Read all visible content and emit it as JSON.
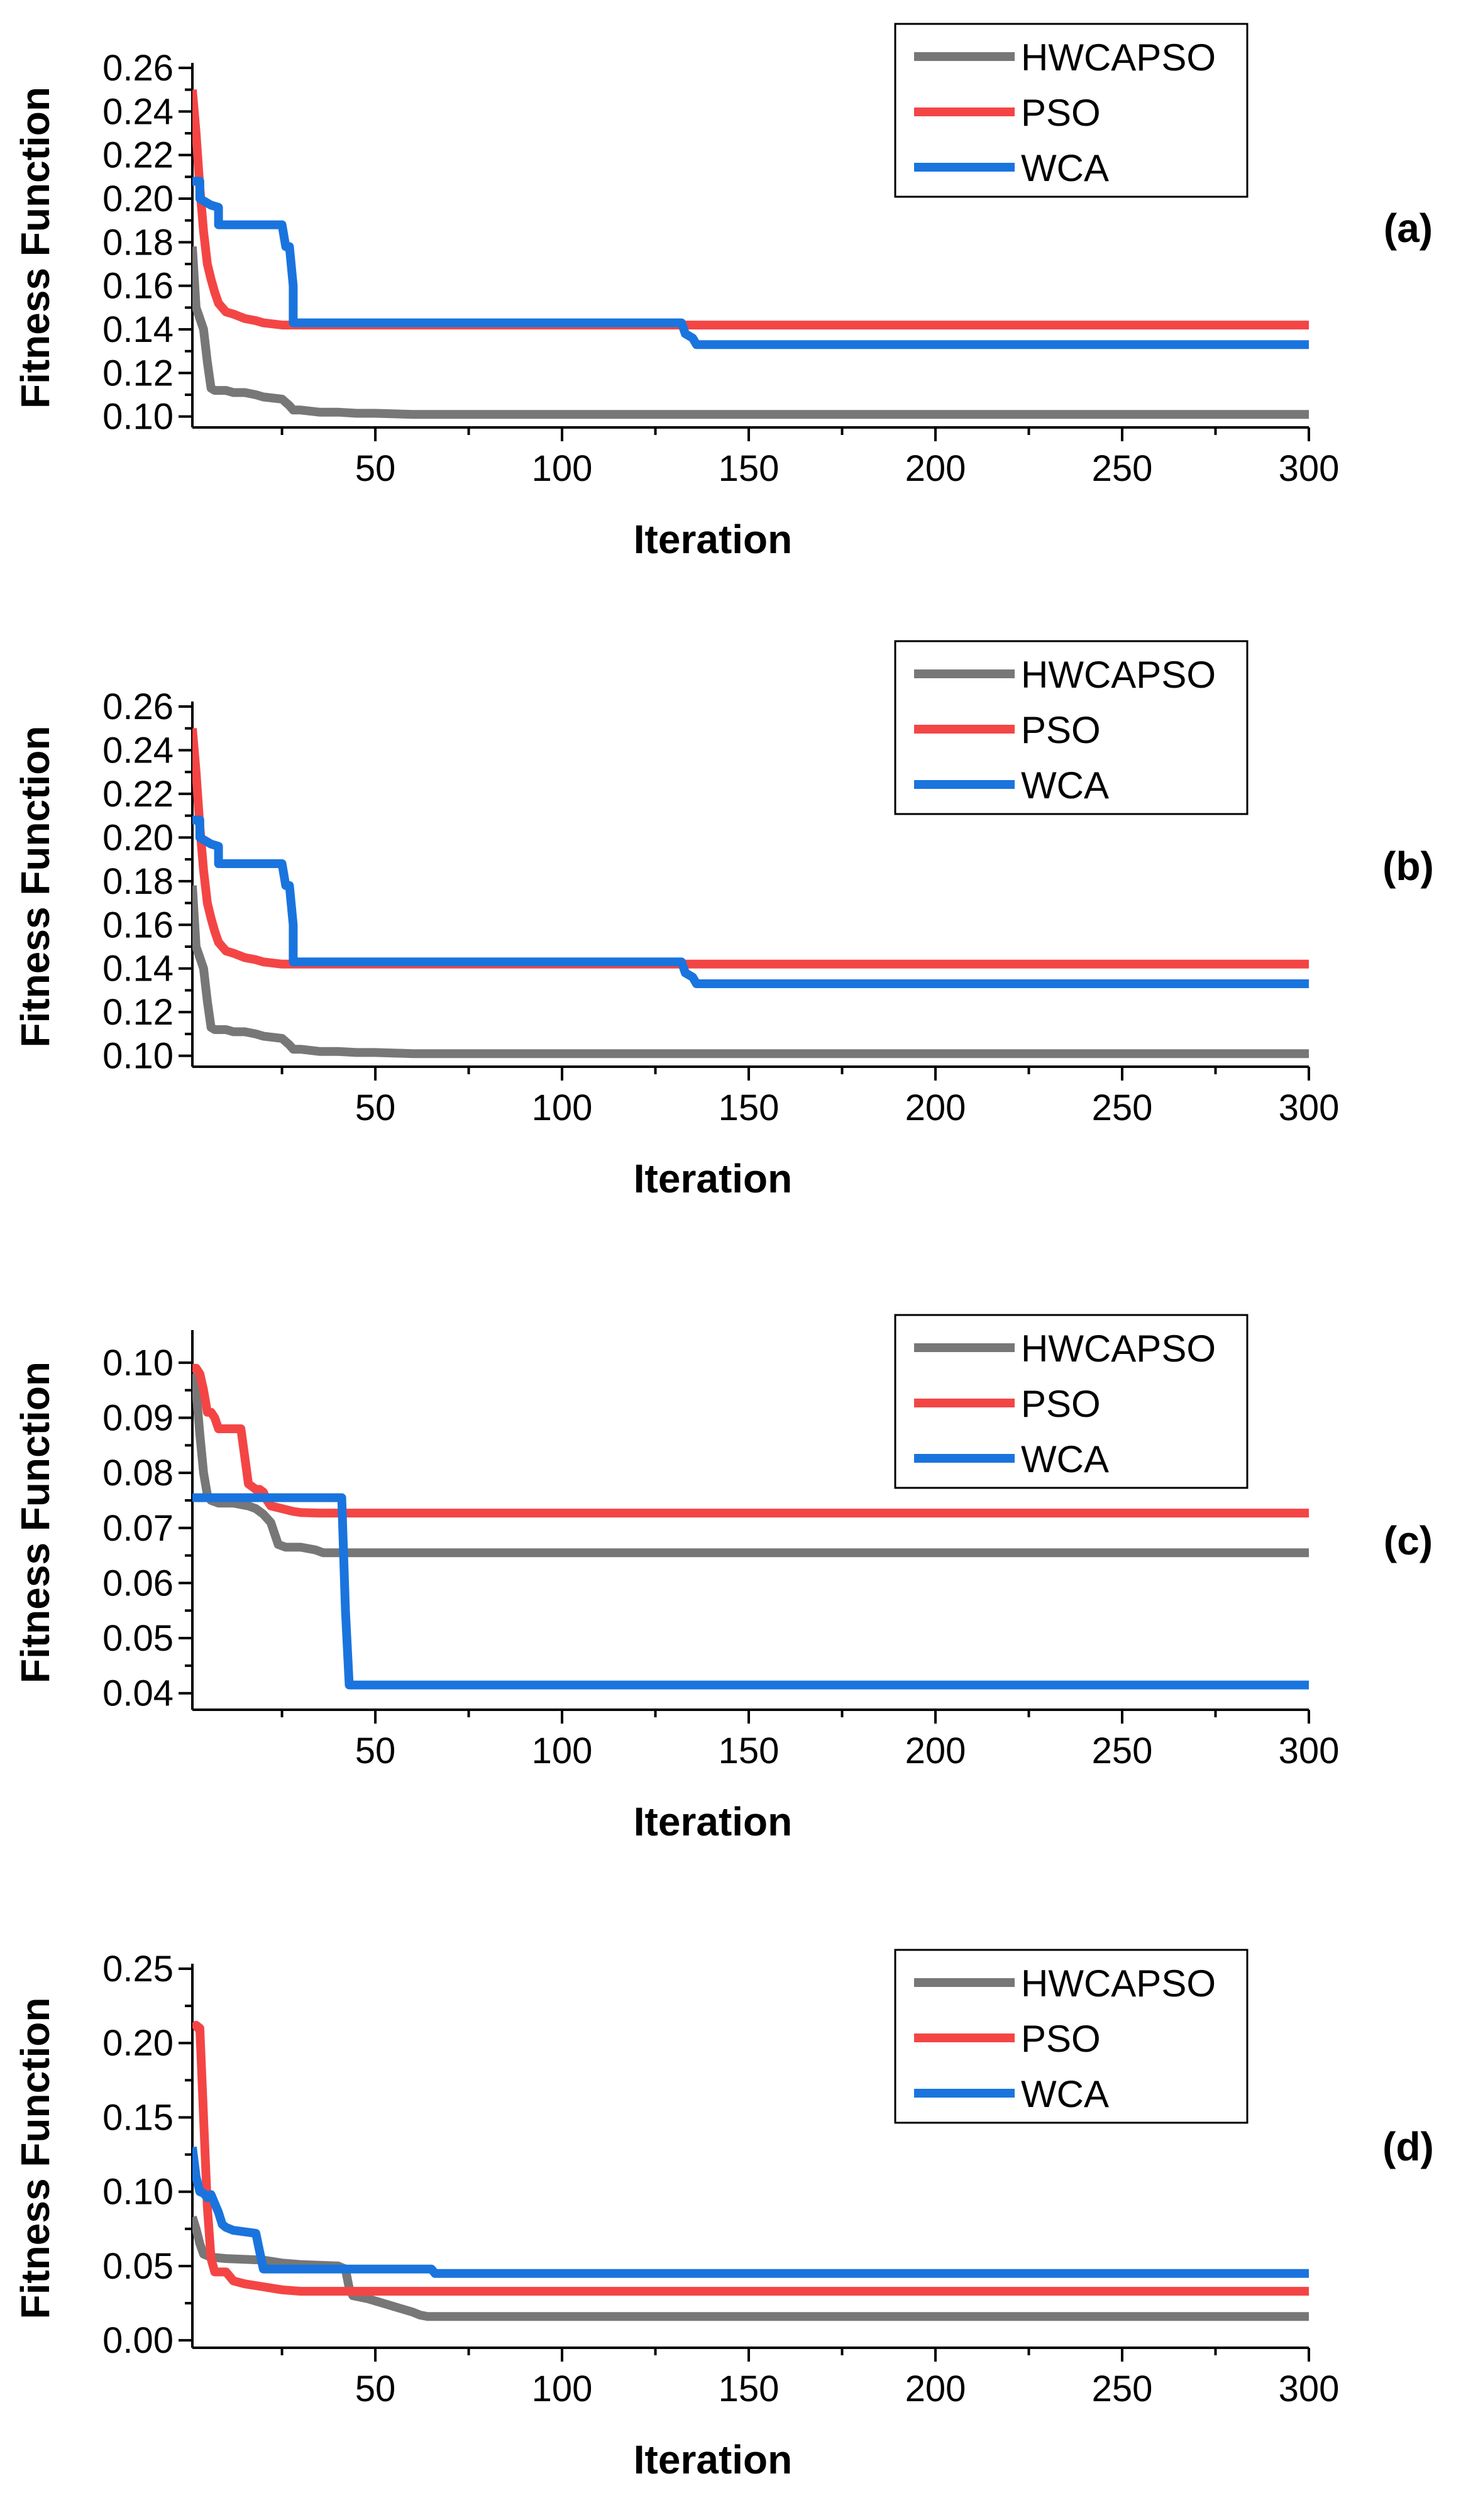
{
  "colors": {
    "HWCAPSO": "#777777",
    "PSO": "#f44545",
    "WCA": "#1a74de",
    "axis": "#000000"
  },
  "chart_data": [
    {
      "type": "line",
      "panel_label": "(a)",
      "xlabel": "Iteration",
      "ylabel": "Fitness Function",
      "xlim": [
        1,
        300
      ],
      "ylim": [
        0.095,
        0.26
      ],
      "xticks": [
        50,
        100,
        150,
        200,
        250,
        300
      ],
      "xtick_labels": [
        "50",
        "100",
        "150",
        "200",
        "250",
        "300"
      ],
      "yticks": [
        0.1,
        0.12,
        0.14,
        0.16,
        0.18,
        0.2,
        0.22,
        0.24,
        0.26
      ],
      "ytick_labels": [
        "0.10",
        "0.12",
        "0.14",
        "0.16",
        "0.18",
        "0.20",
        "0.22",
        "0.24",
        "0.26"
      ],
      "legend_position": "top-right",
      "series": [
        {
          "name": "HWCAPSO",
          "x": [
            1,
            2,
            3,
            4,
            5,
            6,
            7,
            8,
            10,
            12,
            15,
            18,
            20,
            25,
            27,
            28,
            30,
            35,
            40,
            45,
            50,
            60,
            100,
            200,
            300
          ],
          "y": [
            0.178,
            0.15,
            0.145,
            0.14,
            0.125,
            0.113,
            0.112,
            0.112,
            0.112,
            0.111,
            0.111,
            0.11,
            0.109,
            0.108,
            0.105,
            0.103,
            0.103,
            0.102,
            0.102,
            0.1015,
            0.1015,
            0.101,
            0.101,
            0.101,
            0.101
          ]
        },
        {
          "name": "PSO",
          "x": [
            1,
            2,
            3,
            4,
            5,
            6,
            7,
            8,
            10,
            12,
            15,
            18,
            20,
            25,
            30,
            50,
            100,
            200,
            300
          ],
          "y": [
            0.25,
            0.23,
            0.205,
            0.185,
            0.17,
            0.163,
            0.157,
            0.152,
            0.148,
            0.147,
            0.145,
            0.144,
            0.143,
            0.142,
            0.142,
            0.142,
            0.142,
            0.142,
            0.142
          ]
        },
        {
          "name": "WCA",
          "x": [
            1,
            3,
            3,
            6,
            8,
            8,
            25,
            26,
            27,
            28,
            28,
            132,
            133,
            135,
            136,
            300
          ],
          "y": [
            0.208,
            0.208,
            0.2,
            0.197,
            0.196,
            0.188,
            0.188,
            0.178,
            0.178,
            0.16,
            0.143,
            0.143,
            0.138,
            0.136,
            0.133,
            0.133
          ]
        }
      ]
    },
    {
      "type": "line",
      "panel_label": "(b)",
      "xlabel": "Iteration",
      "ylabel": "Fitness Function",
      "xlim": [
        1,
        300
      ],
      "ylim": [
        0.095,
        0.26
      ],
      "xticks": [
        50,
        100,
        150,
        200,
        250,
        300
      ],
      "xtick_labels": [
        "50",
        "100",
        "150",
        "200",
        "250",
        "300"
      ],
      "yticks": [
        0.1,
        0.12,
        0.14,
        0.16,
        0.18,
        0.2,
        0.22,
        0.24,
        0.26
      ],
      "ytick_labels": [
        "0.10",
        "0.12",
        "0.14",
        "0.16",
        "0.18",
        "0.20",
        "0.22",
        "0.24",
        "0.26"
      ],
      "legend_position": "top-right",
      "series": [
        {
          "name": "HWCAPSO",
          "x": [
            1,
            2,
            3,
            4,
            5,
            6,
            7,
            8,
            10,
            12,
            15,
            18,
            20,
            25,
            27,
            28,
            30,
            35,
            40,
            45,
            50,
            60,
            100,
            200,
            300
          ],
          "y": [
            0.178,
            0.15,
            0.145,
            0.14,
            0.125,
            0.113,
            0.112,
            0.112,
            0.112,
            0.111,
            0.111,
            0.11,
            0.109,
            0.108,
            0.105,
            0.103,
            0.103,
            0.102,
            0.102,
            0.1015,
            0.1015,
            0.101,
            0.101,
            0.101,
            0.101
          ]
        },
        {
          "name": "PSO",
          "x": [
            1,
            2,
            3,
            4,
            5,
            6,
            7,
            8,
            10,
            12,
            15,
            18,
            20,
            25,
            30,
            50,
            100,
            200,
            300
          ],
          "y": [
            0.25,
            0.23,
            0.205,
            0.185,
            0.17,
            0.163,
            0.157,
            0.152,
            0.148,
            0.147,
            0.145,
            0.144,
            0.143,
            0.142,
            0.142,
            0.142,
            0.142,
            0.142,
            0.142
          ]
        },
        {
          "name": "WCA",
          "x": [
            1,
            3,
            3,
            6,
            8,
            8,
            25,
            26,
            27,
            28,
            28,
            132,
            133,
            135,
            136,
            300
          ],
          "y": [
            0.208,
            0.208,
            0.2,
            0.197,
            0.196,
            0.188,
            0.188,
            0.178,
            0.178,
            0.16,
            0.143,
            0.143,
            0.138,
            0.136,
            0.133,
            0.133
          ]
        }
      ]
    },
    {
      "type": "line",
      "panel_label": "(c)",
      "xlabel": "Iteration",
      "ylabel": "Fitness Function",
      "xlim": [
        1,
        300
      ],
      "ylim": [
        0.037,
        0.105
      ],
      "xticks": [
        50,
        100,
        150,
        200,
        250,
        300
      ],
      "xtick_labels": [
        "50",
        "100",
        "150",
        "200",
        "250",
        "300"
      ],
      "yticks": [
        0.04,
        0.05,
        0.06,
        0.07,
        0.08,
        0.09,
        0.1
      ],
      "ytick_labels": [
        "0.04",
        "0.05",
        "0.06",
        "0.07",
        "0.08",
        "0.09",
        "0.10"
      ],
      "legend_position": "top-right",
      "series": [
        {
          "name": "HWCAPSO",
          "x": [
            1,
            2,
            3,
            4,
            5,
            6,
            8,
            12,
            16,
            18,
            20,
            22,
            24,
            26,
            30,
            34,
            36,
            40,
            50,
            100,
            200,
            300
          ],
          "y": [
            0.098,
            0.095,
            0.087,
            0.08,
            0.076,
            0.075,
            0.0745,
            0.0745,
            0.074,
            0.0735,
            0.0725,
            0.071,
            0.067,
            0.0665,
            0.0665,
            0.066,
            0.0655,
            0.0655,
            0.0655,
            0.0655,
            0.0655,
            0.0655
          ]
        },
        {
          "name": "PSO",
          "x": [
            1,
            2,
            3,
            4,
            5,
            6,
            7,
            8,
            9,
            10,
            14,
            15,
            16,
            18,
            19,
            20,
            21,
            22,
            25,
            28,
            30,
            35,
            50,
            100,
            200,
            300
          ],
          "y": [
            0.099,
            0.099,
            0.098,
            0.095,
            0.091,
            0.091,
            0.09,
            0.088,
            0.088,
            0.088,
            0.088,
            0.083,
            0.078,
            0.077,
            0.077,
            0.0765,
            0.075,
            0.074,
            0.0735,
            0.073,
            0.0728,
            0.0727,
            0.0727,
            0.0727,
            0.0727,
            0.0727
          ]
        },
        {
          "name": "WCA",
          "x": [
            1,
            41,
            42,
            43,
            100,
            200,
            300
          ],
          "y": [
            0.0755,
            0.0755,
            0.055,
            0.0415,
            0.0415,
            0.0415,
            0.0415
          ]
        }
      ]
    },
    {
      "type": "line",
      "panel_label": "(d)",
      "xlabel": "Iteration",
      "ylabel": "Fitness Function",
      "xlim": [
        1,
        300
      ],
      "ylim": [
        -0.005,
        0.25
      ],
      "xticks": [
        50,
        100,
        150,
        200,
        250,
        300
      ],
      "xtick_labels": [
        "50",
        "100",
        "150",
        "200",
        "250",
        "300"
      ],
      "yticks": [
        0.0,
        0.05,
        0.1,
        0.15,
        0.2,
        0.25
      ],
      "ytick_labels": [
        "0.00",
        "0.05",
        "0.10",
        "0.15",
        "0.20",
        "0.25"
      ],
      "legend_position": "top-right",
      "series": [
        {
          "name": "HWCAPSO",
          "x": [
            1,
            2,
            3,
            4,
            6,
            10,
            20,
            25,
            30,
            40,
            42,
            43,
            44,
            48,
            52,
            56,
            60,
            62,
            64,
            70,
            100,
            200,
            300
          ],
          "y": [
            0.083,
            0.075,
            0.065,
            0.058,
            0.056,
            0.055,
            0.054,
            0.052,
            0.051,
            0.05,
            0.048,
            0.035,
            0.03,
            0.028,
            0.025,
            0.022,
            0.019,
            0.017,
            0.016,
            0.016,
            0.016,
            0.016,
            0.016
          ]
        },
        {
          "name": "PSO",
          "x": [
            1,
            2,
            3,
            4,
            5,
            6,
            7,
            8,
            10,
            12,
            15,
            20,
            25,
            30,
            40,
            50,
            100,
            200,
            300
          ],
          "y": [
            0.21,
            0.212,
            0.21,
            0.15,
            0.09,
            0.055,
            0.046,
            0.046,
            0.046,
            0.04,
            0.038,
            0.036,
            0.034,
            0.033,
            0.033,
            0.033,
            0.033,
            0.033,
            0.033
          ]
        },
        {
          "name": "WCA",
          "x": [
            1,
            2,
            3,
            4,
            5,
            6,
            8,
            9,
            10,
            12,
            18,
            19,
            20,
            35,
            50,
            55,
            65,
            66,
            100,
            200,
            300
          ],
          "y": [
            0.13,
            0.11,
            0.1,
            0.099,
            0.096,
            0.098,
            0.086,
            0.078,
            0.076,
            0.074,
            0.072,
            0.06,
            0.048,
            0.048,
            0.048,
            0.048,
            0.048,
            0.045,
            0.045,
            0.045,
            0.045
          ]
        }
      ]
    }
  ]
}
